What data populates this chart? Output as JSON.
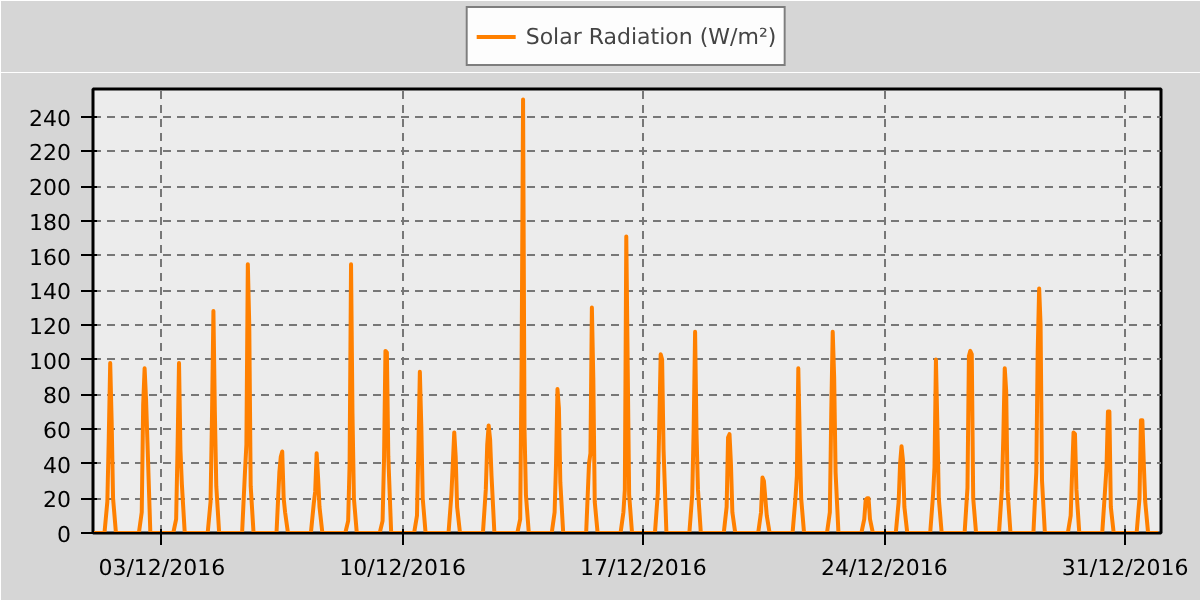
{
  "chart_data": {
    "type": "line",
    "grid": true,
    "legend": "top",
    "marker": "none",
    "line_style": "solid",
    "xlim": [
      "2016-12-01T00:00",
      "2017-01-01T01:00"
    ],
    "xticks": [
      {
        "value": "2016-12-03",
        "label": "03/12/2016"
      },
      {
        "value": "2016-12-10",
        "label": "10/12/2016"
      },
      {
        "value": "2016-12-17",
        "label": "17/12/2016"
      },
      {
        "value": "2016-12-24",
        "label": "24/12/2016"
      },
      {
        "value": "2016-12-31",
        "label": "31/12/2016"
      }
    ],
    "ylim": [
      0,
      256
    ],
    "yticks": [
      0,
      20,
      40,
      60,
      80,
      100,
      120,
      140,
      160,
      180,
      200,
      220,
      240
    ],
    "x": [
      "2016-12-01T00:00",
      "2016-12-01T08:00",
      "2016-12-01T10:00",
      "2016-12-01T11:00",
      "2016-12-01T12:00",
      "2016-12-01T13:00",
      "2016-12-01T14:00",
      "2016-12-01T16:00",
      "2016-12-02T08:00",
      "2016-12-02T10:00",
      "2016-12-02T11:00",
      "2016-12-02T12:00",
      "2016-12-02T13:00",
      "2016-12-02T14:00",
      "2016-12-02T16:00",
      "2016-12-03T08:00",
      "2016-12-03T10:00",
      "2016-12-03T11:00",
      "2016-12-03T12:00",
      "2016-12-03T13:00",
      "2016-12-03T14:00",
      "2016-12-03T16:00",
      "2016-12-04T08:00",
      "2016-12-04T10:00",
      "2016-12-04T11:00",
      "2016-12-04T12:00",
      "2016-12-04T13:00",
      "2016-12-04T14:00",
      "2016-12-04T16:00",
      "2016-12-05T08:00",
      "2016-12-05T10:00",
      "2016-12-05T11:00",
      "2016-12-05T12:00",
      "2016-12-05T13:00",
      "2016-12-05T14:00",
      "2016-12-05T16:00",
      "2016-12-06T08:00",
      "2016-12-06T10:00",
      "2016-12-06T11:00",
      "2016-12-06T12:00",
      "2016-12-06T13:00",
      "2016-12-06T14:00",
      "2016-12-06T16:00",
      "2016-12-07T08:00",
      "2016-12-07T10:00",
      "2016-12-07T11:00",
      "2016-12-07T12:00",
      "2016-12-07T13:00",
      "2016-12-07T14:00",
      "2016-12-07T16:00",
      "2016-12-08T08:00",
      "2016-12-08T10:00",
      "2016-12-08T11:00",
      "2016-12-08T12:00",
      "2016-12-08T13:00",
      "2016-12-08T14:00",
      "2016-12-08T16:00",
      "2016-12-09T08:00",
      "2016-12-09T10:00",
      "2016-12-09T11:00",
      "2016-12-09T12:00",
      "2016-12-09T13:00",
      "2016-12-09T14:00",
      "2016-12-09T16:00",
      "2016-12-10T08:00",
      "2016-12-10T10:00",
      "2016-12-10T11:00",
      "2016-12-10T12:00",
      "2016-12-10T13:00",
      "2016-12-10T14:00",
      "2016-12-10T16:00",
      "2016-12-11T08:00",
      "2016-12-11T10:00",
      "2016-12-11T11:00",
      "2016-12-11T12:00",
      "2016-12-11T13:00",
      "2016-12-11T14:00",
      "2016-12-11T16:00",
      "2016-12-12T08:00",
      "2016-12-12T10:00",
      "2016-12-12T11:00",
      "2016-12-12T12:00",
      "2016-12-12T13:00",
      "2016-12-12T14:00",
      "2016-12-12T16:00",
      "2016-12-13T08:00",
      "2016-12-13T10:00",
      "2016-12-13T11:00",
      "2016-12-13T12:00",
      "2016-12-13T13:00",
      "2016-12-13T14:00",
      "2016-12-13T16:00",
      "2016-12-14T08:00",
      "2016-12-14T10:00",
      "2016-12-14T11:00",
      "2016-12-14T12:00",
      "2016-12-14T13:00",
      "2016-12-14T14:00",
      "2016-12-14T16:00",
      "2016-12-15T08:00",
      "2016-12-15T10:00",
      "2016-12-15T11:00",
      "2016-12-15T12:00",
      "2016-12-15T13:00",
      "2016-12-15T14:00",
      "2016-12-15T16:00",
      "2016-12-16T08:00",
      "2016-12-16T10:00",
      "2016-12-16T11:00",
      "2016-12-16T12:00",
      "2016-12-16T13:00",
      "2016-12-16T14:00",
      "2016-12-16T16:00",
      "2016-12-17T08:00",
      "2016-12-17T10:00",
      "2016-12-17T11:00",
      "2016-12-17T12:00",
      "2016-12-17T13:00",
      "2016-12-17T14:00",
      "2016-12-17T16:00",
      "2016-12-18T08:00",
      "2016-12-18T10:00",
      "2016-12-18T11:00",
      "2016-12-18T12:00",
      "2016-12-18T13:00",
      "2016-12-18T14:00",
      "2016-12-18T16:00",
      "2016-12-19T08:00",
      "2016-12-19T10:00",
      "2016-12-19T11:00",
      "2016-12-19T12:00",
      "2016-12-19T13:00",
      "2016-12-19T14:00",
      "2016-12-19T16:00",
      "2016-12-20T08:00",
      "2016-12-20T10:00",
      "2016-12-20T11:00",
      "2016-12-20T12:00",
      "2016-12-20T13:00",
      "2016-12-20T14:00",
      "2016-12-20T16:00",
      "2016-12-21T08:00",
      "2016-12-21T10:00",
      "2016-12-21T11:00",
      "2016-12-21T12:00",
      "2016-12-21T13:00",
      "2016-12-21T14:00",
      "2016-12-21T16:00",
      "2016-12-22T08:00",
      "2016-12-22T10:00",
      "2016-12-22T11:00",
      "2016-12-22T12:00",
      "2016-12-22T13:00",
      "2016-12-22T14:00",
      "2016-12-22T16:00",
      "2016-12-23T08:00",
      "2016-12-23T10:00",
      "2016-12-23T11:00",
      "2016-12-23T12:00",
      "2016-12-23T13:00",
      "2016-12-23T14:00",
      "2016-12-23T16:00",
      "2016-12-24T08:00",
      "2016-12-24T10:00",
      "2016-12-24T11:00",
      "2016-12-24T12:00",
      "2016-12-24T13:00",
      "2016-12-24T14:00",
      "2016-12-24T16:00",
      "2016-12-25T08:00",
      "2016-12-25T10:00",
      "2016-12-25T11:00",
      "2016-12-25T12:00",
      "2016-12-25T13:00",
      "2016-12-25T14:00",
      "2016-12-25T16:00",
      "2016-12-26T08:00",
      "2016-12-26T10:00",
      "2016-12-26T11:00",
      "2016-12-26T12:00",
      "2016-12-26T13:00",
      "2016-12-26T14:00",
      "2016-12-26T16:00",
      "2016-12-27T08:00",
      "2016-12-27T10:00",
      "2016-12-27T11:00",
      "2016-12-27T12:00",
      "2016-12-27T13:00",
      "2016-12-27T14:00",
      "2016-12-27T16:00",
      "2016-12-28T08:00",
      "2016-12-28T10:00",
      "2016-12-28T11:00",
      "2016-12-28T12:00",
      "2016-12-28T13:00",
      "2016-12-28T14:00",
      "2016-12-28T16:00",
      "2016-12-29T08:00",
      "2016-12-29T10:00",
      "2016-12-29T11:00",
      "2016-12-29T12:00",
      "2016-12-29T13:00",
      "2016-12-29T14:00",
      "2016-12-29T16:00",
      "2016-12-30T08:00",
      "2016-12-30T10:00",
      "2016-12-30T11:00",
      "2016-12-30T12:00",
      "2016-12-30T13:00",
      "2016-12-30T14:00",
      "2016-12-30T16:00",
      "2016-12-31T08:00",
      "2016-12-31T10:00",
      "2016-12-31T11:00",
      "2016-12-31T12:00",
      "2016-12-31T13:00",
      "2016-12-31T14:00",
      "2016-12-31T16:00",
      "2016-12-31T23:00"
    ],
    "series": [
      {
        "name": "Solar Radiation (W/m²)",
        "color": "#ff8000",
        "values": [
          0,
          0,
          18,
          55,
          98,
          65,
          20,
          0,
          0,
          12,
          74,
          95,
          77,
          52,
          0,
          0,
          8,
          50,
          98,
          48,
          28,
          0,
          0,
          18,
          67,
          128,
          70,
          27,
          0,
          0,
          35,
          51,
          155,
          120,
          27,
          0,
          0,
          35,
          44,
          47,
          20,
          12,
          0,
          0,
          17,
          24,
          46,
          32,
          15,
          0,
          0,
          7,
          40,
          155,
          69,
          20,
          0,
          0,
          7,
          42,
          105,
          104,
          44,
          0,
          0,
          10,
          50,
          93,
          62,
          20,
          0,
          0,
          22,
          40,
          58,
          44,
          15,
          0,
          0,
          25,
          51,
          62,
          54,
          33,
          0,
          0,
          8,
          100,
          250,
          60,
          22,
          0,
          0,
          12,
          40,
          83,
          72,
          29,
          0,
          0,
          40,
          46,
          130,
          89,
          18,
          0,
          0,
          12,
          25,
          171,
          95,
          22,
          0,
          0,
          23,
          62,
          103,
          100,
          48,
          0,
          0,
          22,
          60,
          116,
          57,
          25,
          0,
          0,
          15,
          55,
          57,
          40,
          12,
          0,
          0,
          12,
          32,
          30,
          20,
          10,
          0,
          0,
          20,
          33,
          95,
          54,
          20,
          0,
          0,
          12,
          70,
          116,
          90,
          35,
          0,
          0,
          8,
          19,
          20,
          20,
          8,
          0,
          0,
          18,
          40,
          50,
          42,
          15,
          0,
          0,
          22,
          38,
          100,
          62,
          20,
          0,
          0,
          26,
          102,
          105,
          103,
          20,
          0,
          0,
          25,
          55,
          95,
          82,
          24,
          0,
          0,
          35,
          105,
          141,
          120,
          30,
          0,
          0,
          10,
          35,
          58,
          57,
          25,
          0,
          0,
          25,
          38,
          70,
          70,
          15,
          0,
          0,
          20,
          65,
          65,
          40,
          18,
          0,
          0
        ]
      }
    ]
  }
}
